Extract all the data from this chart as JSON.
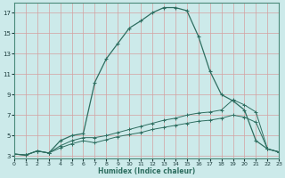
{
  "xlabel": "Humidex (Indice chaleur)",
  "bg_color": "#cceaea",
  "grid_color_major": "#e8c8c8",
  "grid_color_minor": "#d8e8e8",
  "line_color": "#2e6e60",
  "x_min": 0,
  "x_max": 23,
  "y_min": 3,
  "y_max": 18,
  "yticks": [
    3,
    5,
    7,
    9,
    11,
    13,
    15,
    17
  ],
  "xticks": [
    0,
    1,
    2,
    3,
    4,
    5,
    6,
    7,
    8,
    9,
    10,
    11,
    12,
    13,
    14,
    15,
    16,
    17,
    18,
    19,
    20,
    21,
    22,
    23
  ],
  "curve1_x": [
    0,
    1,
    2,
    3,
    4,
    5,
    6,
    7,
    8,
    9,
    10,
    11,
    12,
    13,
    14,
    15,
    16,
    17,
    18,
    19,
    20,
    21,
    22,
    23
  ],
  "curve1_y": [
    3.2,
    3.1,
    3.5,
    3.3,
    4.5,
    5.0,
    5.2,
    10.2,
    12.5,
    14.0,
    15.5,
    16.2,
    17.0,
    17.5,
    17.5,
    17.2,
    14.7,
    11.3,
    9.0,
    8.4,
    7.5,
    4.5,
    3.7,
    3.4
  ],
  "curve2_x": [
    0,
    1,
    2,
    3,
    4,
    5,
    6,
    7,
    8,
    9,
    10,
    11,
    12,
    13,
    14,
    15,
    16,
    17,
    18,
    19,
    20,
    21,
    22,
    23
  ],
  "curve2_y": [
    3.2,
    3.1,
    3.5,
    3.3,
    4.0,
    4.5,
    4.8,
    4.8,
    5.0,
    5.3,
    5.6,
    5.9,
    6.2,
    6.5,
    6.7,
    7.0,
    7.2,
    7.3,
    7.5,
    8.5,
    8.0,
    7.3,
    3.7,
    3.4
  ],
  "curve3_x": [
    0,
    1,
    2,
    3,
    4,
    5,
    6,
    7,
    8,
    9,
    10,
    11,
    12,
    13,
    14,
    15,
    16,
    17,
    18,
    19,
    20,
    21,
    22,
    23
  ],
  "curve3_y": [
    3.2,
    3.1,
    3.5,
    3.3,
    3.8,
    4.2,
    4.5,
    4.3,
    4.6,
    4.9,
    5.1,
    5.3,
    5.6,
    5.8,
    6.0,
    6.2,
    6.4,
    6.5,
    6.7,
    7.0,
    6.8,
    6.3,
    3.7,
    3.4
  ]
}
